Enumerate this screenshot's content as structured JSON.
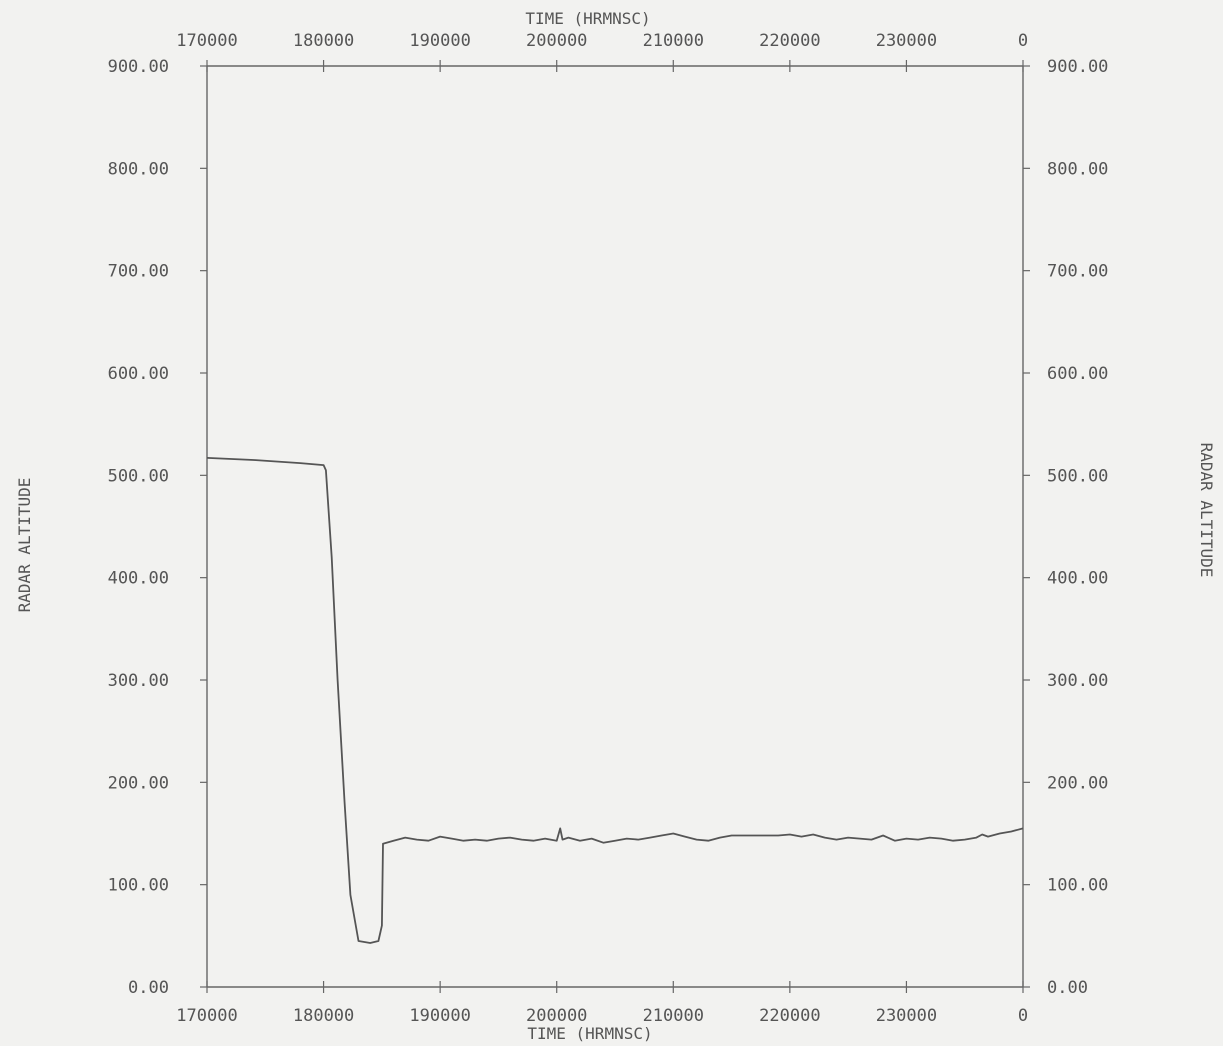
{
  "chart_data": {
    "type": "line",
    "top_axis_title": "TIME (HRMNSC)",
    "bottom_axis_title": "TIME (HRMNSC)",
    "ylabel_left": "RADAR ALTITUDE",
    "ylabel_right": "RADAR ALTITUDE",
    "x_tick_labels": [
      "170000",
      "180000",
      "190000",
      "200000",
      "210000",
      "220000",
      "230000",
      "0"
    ],
    "y_tick_labels": [
      "0.00",
      "100.00",
      "200.00",
      "300.00",
      "400.00",
      "500.00",
      "600.00",
      "700.00",
      "800.00",
      "900.00"
    ],
    "xlim": [
      0,
      70000
    ],
    "ylim": [
      0,
      900
    ],
    "grid": false,
    "series": [
      {
        "color": "#555555",
        "x": [
          0,
          4000,
          8000,
          10000,
          10200,
          10700,
          11200,
          11800,
          12300,
          13000,
          14000,
          14700,
          15000,
          15100,
          16000,
          17000,
          18000,
          19000,
          20000,
          21000,
          22000,
          23000,
          24000,
          25000,
          26000,
          27000,
          28000,
          29000,
          30000,
          30300,
          30500,
          31000,
          32000,
          33000,
          34000,
          35000,
          36000,
          37000,
          38000,
          39000,
          40000,
          41000,
          42000,
          43000,
          44000,
          45000,
          46000,
          47000,
          48000,
          49000,
          50000,
          51000,
          52000,
          53000,
          54000,
          55000,
          56000,
          57000,
          58000,
          59000,
          60000,
          61000,
          62000,
          63000,
          64000,
          65000,
          66000,
          66500,
          67000,
          68000,
          69000,
          70000
        ],
        "y": [
          517,
          515,
          512,
          510,
          505,
          420,
          300,
          180,
          90,
          45,
          43,
          45,
          60,
          140,
          143,
          146,
          144,
          143,
          147,
          145,
          143,
          144,
          143,
          145,
          146,
          144,
          143,
          145,
          143,
          155,
          144,
          146,
          143,
          145,
          141,
          143,
          145,
          144,
          146,
          148,
          150,
          147,
          144,
          143,
          146,
          148,
          148,
          148,
          148,
          148,
          149,
          147,
          149,
          146,
          144,
          146,
          145,
          144,
          148,
          143,
          145,
          144,
          146,
          145,
          143,
          144,
          146,
          149,
          147,
          150,
          152,
          155
        ]
      }
    ]
  }
}
